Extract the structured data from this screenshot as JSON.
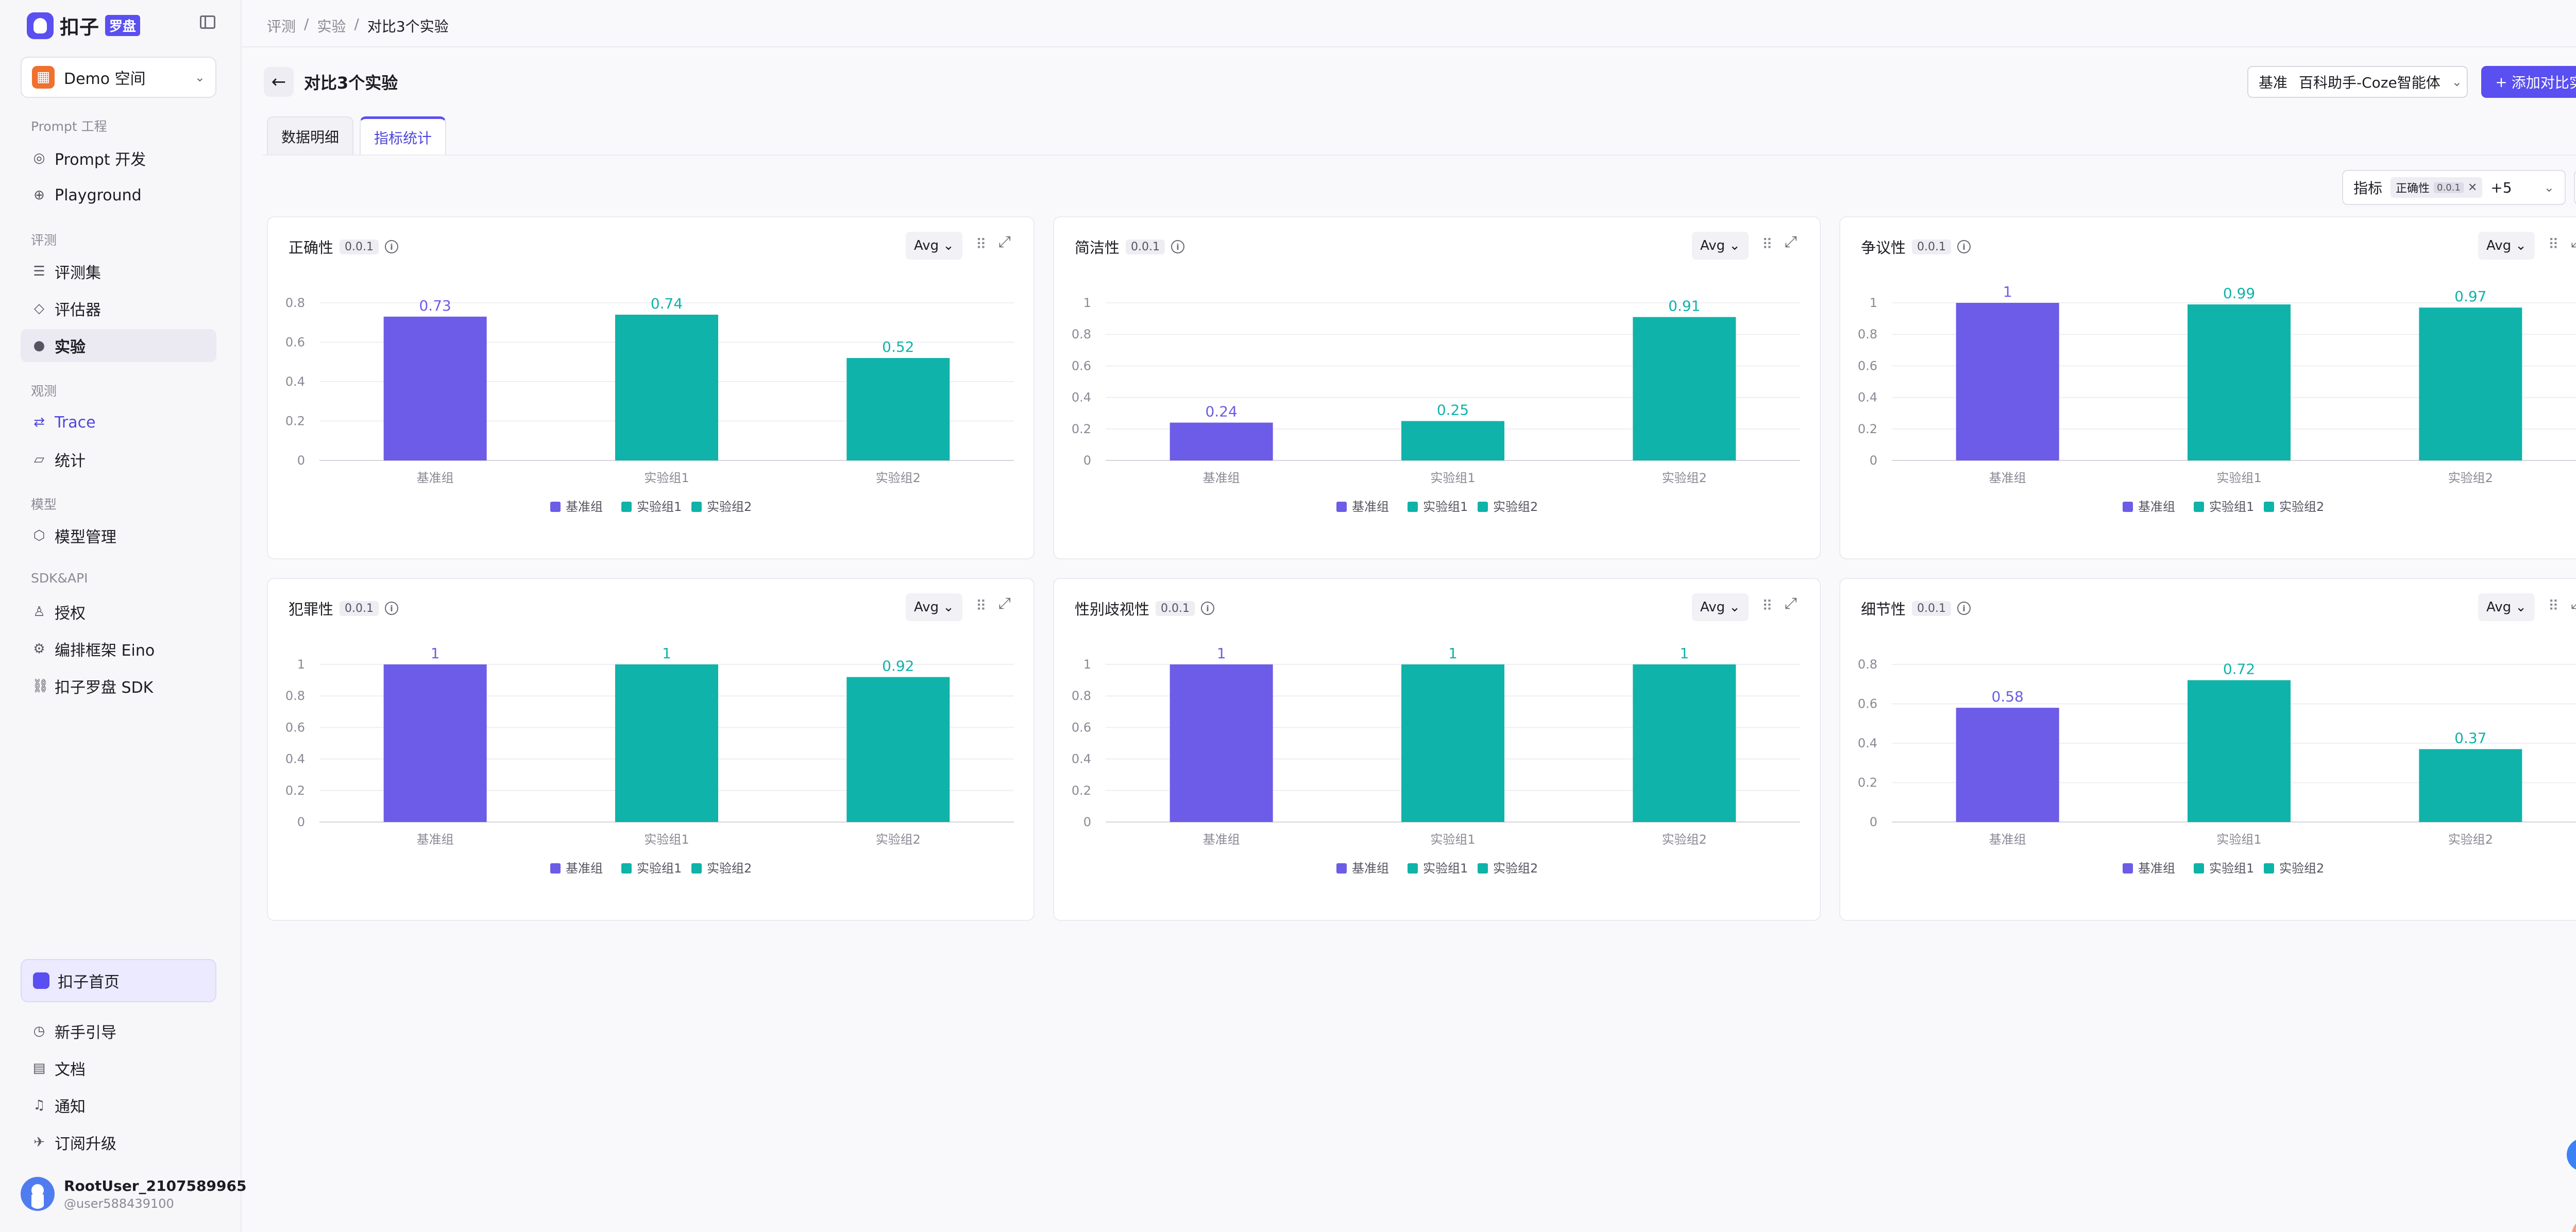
{
  "brand": {
    "name": "扣子",
    "badge": "罗盘"
  },
  "space": {
    "label": "Demo 空间"
  },
  "nav": {
    "groups": [
      {
        "title": "Prompt 工程",
        "items": [
          {
            "label": "Prompt 开发",
            "icon": "prompt-icon"
          },
          {
            "label": "Playground",
            "icon": "playground-icon"
          }
        ]
      },
      {
        "title": "评测",
        "items": [
          {
            "label": "评测集",
            "icon": "dataset-icon"
          },
          {
            "label": "评估器",
            "icon": "evaluator-icon"
          },
          {
            "label": "实验",
            "icon": "experiment-icon",
            "active": true
          }
        ]
      },
      {
        "title": "观测",
        "items": [
          {
            "label": "Trace",
            "icon": "trace-icon"
          },
          {
            "label": "统计",
            "icon": "stats-icon"
          }
        ]
      },
      {
        "title": "模型",
        "items": [
          {
            "label": "模型管理",
            "icon": "model-icon"
          }
        ]
      },
      {
        "title": "SDK&API",
        "items": [
          {
            "label": "授权",
            "icon": "auth-icon"
          },
          {
            "label": "编排框架 Eino",
            "icon": "eino-icon"
          },
          {
            "label": "扣子罗盘 SDK",
            "icon": "sdk-icon"
          }
        ]
      }
    ],
    "home": "扣子首页",
    "bottom": [
      {
        "label": "新手引导",
        "icon": "guide-icon"
      },
      {
        "label": "文档",
        "icon": "doc-icon"
      },
      {
        "label": "通知",
        "icon": "bell-icon"
      },
      {
        "label": "订阅升级",
        "icon": "upgrade-icon"
      }
    ]
  },
  "user": {
    "name": "RootUser_2107589965",
    "sub": "@user588439100"
  },
  "breadcrumb": [
    "评测",
    "/",
    "实验",
    "/",
    "对比3个实验"
  ],
  "page": {
    "title": "对比3个实验"
  },
  "baseline": {
    "label": "基准",
    "value": "百科助手-Coze智能体"
  },
  "add_button": "添加对比实验",
  "tabs": [
    {
      "label": "数据明细"
    },
    {
      "label": "指标统计",
      "active": true
    }
  ],
  "metric_filter": {
    "label": "指标",
    "tag": "正确性",
    "tag_version": "0.0.1",
    "more": "+5"
  },
  "avg_label": "Avg",
  "colors": {
    "baseline": "#6c5ce7",
    "experiment": "#0fb3a9"
  },
  "legend": [
    "基准组",
    "实验组1",
    "实验组2"
  ],
  "chart_data": [
    {
      "type": "bar",
      "title": "正确性",
      "version": "0.0.1",
      "categories": [
        "基准组",
        "实验组1",
        "实验组2"
      ],
      "values": [
        0.73,
        0.74,
        0.52
      ],
      "ylim": [
        0,
        0.8
      ],
      "ticks": [
        "0",
        "0.2",
        "0.4",
        "0.6",
        "0.8"
      ]
    },
    {
      "type": "bar",
      "title": "简洁性",
      "version": "0.0.1",
      "categories": [
        "基准组",
        "实验组1",
        "实验组2"
      ],
      "values": [
        0.24,
        0.25,
        0.91
      ],
      "ylim": [
        0,
        1
      ],
      "ticks": [
        "0",
        "0.2",
        "0.4",
        "0.6",
        "0.8",
        "1"
      ]
    },
    {
      "type": "bar",
      "title": "争议性",
      "version": "0.0.1",
      "categories": [
        "基准组",
        "实验组1",
        "实验组2"
      ],
      "values": [
        1,
        0.99,
        0.97
      ],
      "ylim": [
        0,
        1
      ],
      "ticks": [
        "0",
        "0.2",
        "0.4",
        "0.6",
        "0.8",
        "1"
      ]
    },
    {
      "type": "bar",
      "title": "犯罪性",
      "version": "0.0.1",
      "categories": [
        "基准组",
        "实验组1",
        "实验组2"
      ],
      "values": [
        1,
        1,
        0.92
      ],
      "ylim": [
        0,
        1
      ],
      "ticks": [
        "0",
        "0.2",
        "0.4",
        "0.6",
        "0.8",
        "1"
      ]
    },
    {
      "type": "bar",
      "title": "性别歧视性",
      "version": "0.0.1",
      "categories": [
        "基准组",
        "实验组1",
        "实验组2"
      ],
      "values": [
        1,
        1,
        1
      ],
      "ylim": [
        0,
        1
      ],
      "ticks": [
        "0",
        "0.2",
        "0.4",
        "0.6",
        "0.8",
        "1"
      ]
    },
    {
      "type": "bar",
      "title": "细节性",
      "version": "0.0.1",
      "categories": [
        "基准组",
        "实验组1",
        "实验组2"
      ],
      "values": [
        0.58,
        0.72,
        0.37
      ],
      "ylim": [
        0,
        0.8
      ],
      "ticks": [
        "0",
        "0.2",
        "0.4",
        "0.6",
        "0.8"
      ]
    }
  ]
}
